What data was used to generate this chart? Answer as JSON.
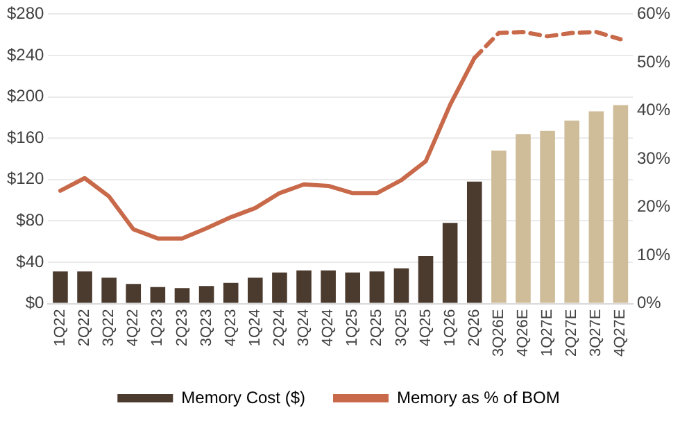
{
  "chart_data": {
    "type": "bar",
    "categories": [
      "1Q22",
      "2Q22",
      "3Q22",
      "4Q22",
      "1Q23",
      "2Q23",
      "3Q23",
      "4Q23",
      "1Q24",
      "2Q24",
      "3Q24",
      "4Q24",
      "1Q25",
      "2Q25",
      "3Q25",
      "4Q25",
      "1Q26",
      "2Q26",
      "3Q26E",
      "4Q26E",
      "1Q27E",
      "2Q27E",
      "3Q27E",
      "4Q27E"
    ],
    "series": [
      {
        "name": "Memory Cost ($)",
        "color": "#4b3a2e",
        "colors": [
          "#4b3a2e",
          "#4b3a2e",
          "#4b3a2e",
          "#4b3a2e",
          "#4b3a2e",
          "#4b3a2e",
          "#4b3a2e",
          "#4b3a2e",
          "#4b3a2e",
          "#4b3a2e",
          "#4b3a2e",
          "#4b3a2e",
          "#4b3a2e",
          "#4b3a2e",
          "#4b3a2e",
          "#4b3a2e",
          "#4b3a2e",
          "#4b3a2e",
          "#cfbc98",
          "#cfbc98",
          "#cfbc98",
          "#cfbc98",
          "#cfbc98",
          "#cfbc98"
        ],
        "values": [
          31,
          31,
          25,
          19,
          16,
          15,
          17,
          20,
          25,
          30,
          32,
          32,
          30,
          31,
          34,
          46,
          78,
          118,
          148,
          164,
          167,
          177,
          186,
          192
        ]
      },
      {
        "name": "Memory as % of BOM",
        "type": "line",
        "axis": "y2",
        "color": "#c8694a",
        "line_style": "solid",
        "values": [
          23.4,
          26.0,
          22.2,
          15.4,
          13.5,
          13.5,
          15.6,
          17.9,
          19.8,
          22.9,
          24.7,
          24.4,
          22.9,
          22.9,
          25.6,
          29.5,
          41.2,
          50.9,
          null,
          null,
          null,
          null,
          null,
          null
        ]
      },
      {
        "type": "line",
        "axis": "y2",
        "color": "#c8694a",
        "line_style": "dashed",
        "values": [
          null,
          null,
          null,
          null,
          null,
          null,
          null,
          null,
          null,
          null,
          null,
          null,
          null,
          null,
          null,
          null,
          null,
          50.9,
          56.1,
          56.3,
          55.4,
          56.1,
          56.3,
          54.8
        ]
      }
    ],
    "ylim": [
      0,
      280
    ],
    "yticks": [
      {
        "value": 0,
        "label": "$0"
      },
      {
        "value": 40,
        "label": "$40"
      },
      {
        "value": 80,
        "label": "$80"
      },
      {
        "value": 120,
        "label": "$120"
      },
      {
        "value": 160,
        "label": "$160"
      },
      {
        "value": 200,
        "label": "$200"
      },
      {
        "value": 240,
        "label": "$240"
      },
      {
        "value": 280,
        "label": "$280"
      }
    ],
    "y2lim": [
      0,
      60
    ],
    "y2ticks": [
      {
        "value": 0,
        "label": "0%"
      },
      {
        "value": 10,
        "label": "10%"
      },
      {
        "value": 20,
        "label": "20%"
      },
      {
        "value": 30,
        "label": "30%"
      },
      {
        "value": 40,
        "label": "40%"
      },
      {
        "value": 50,
        "label": "50%"
      },
      {
        "value": 60,
        "label": "60%"
      }
    ],
    "grid": "y",
    "legend": "bottom"
  }
}
